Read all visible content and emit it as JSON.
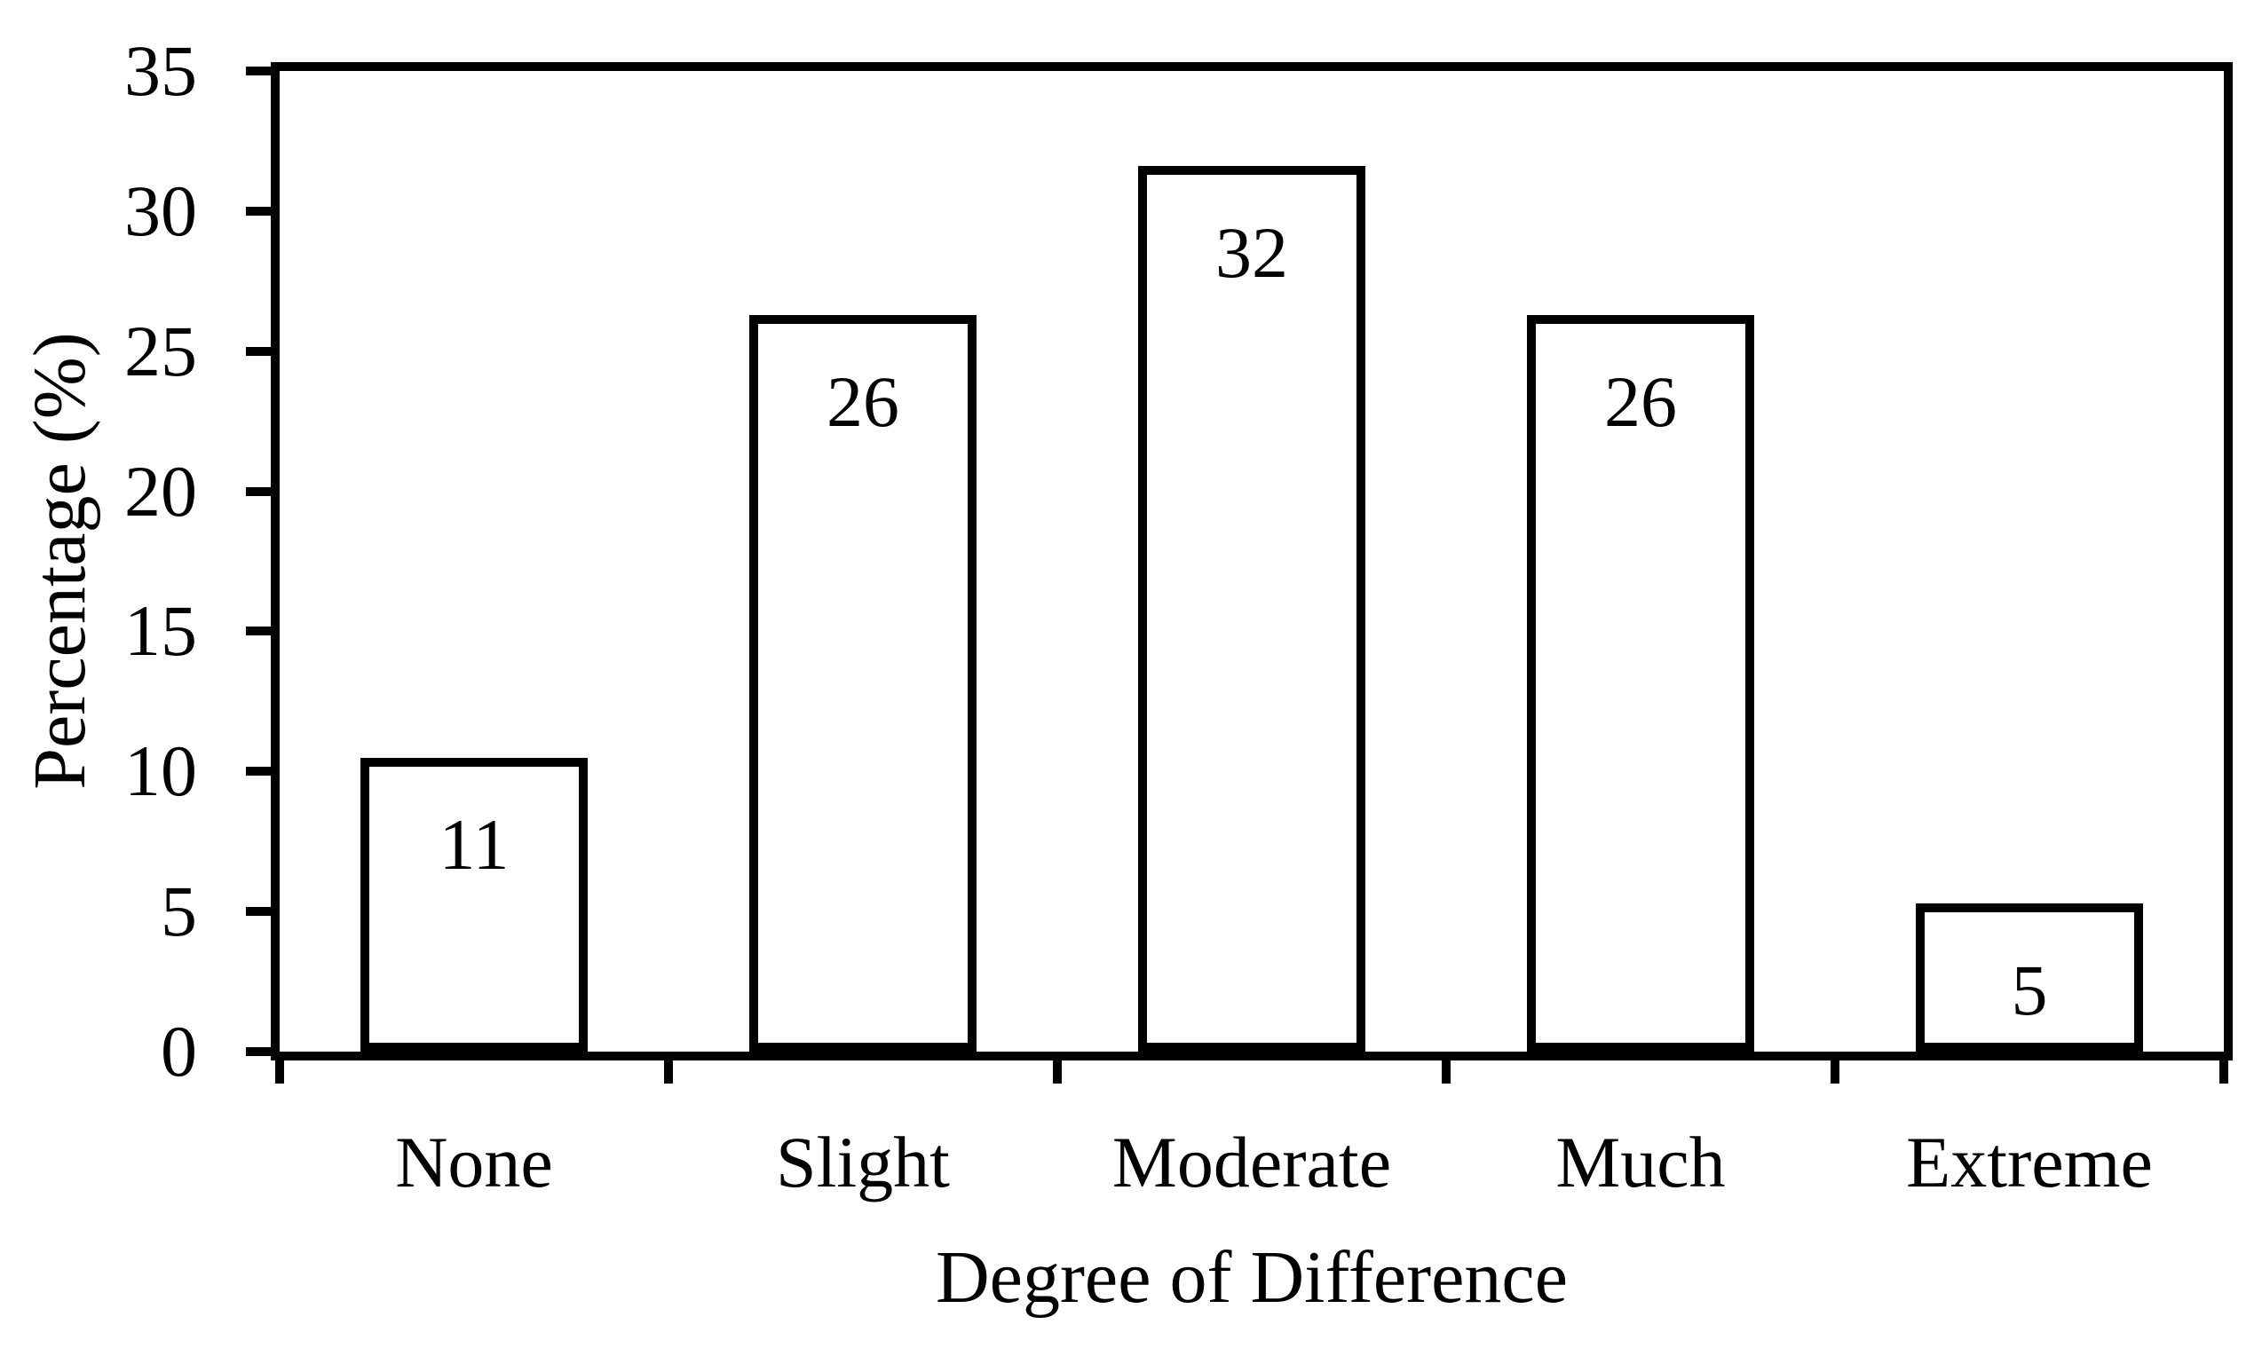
{
  "figure": {
    "background": "#ffffff",
    "ink": "#000000"
  },
  "chart_data": {
    "type": "bar",
    "title": "",
    "xlabel": "Degree of Difference",
    "ylabel": "Percentage (%)",
    "categories": [
      "None",
      "Slight",
      "Moderate",
      "Much",
      "Extreme"
    ],
    "values": [
      11,
      26,
      32,
      26,
      5
    ],
    "bar_heights_percent": [
      10.5,
      26.3,
      31.6,
      26.3,
      5.3
    ],
    "value_labels": [
      "11",
      "26",
      "32",
      "26",
      "5"
    ],
    "value_label_position": "inside-end",
    "y_ticks": [
      0,
      5,
      10,
      15,
      20,
      25,
      30,
      35
    ],
    "y_tick_labels": [
      "0",
      "5",
      "10",
      "15",
      "20",
      "25",
      "30",
      "35"
    ],
    "ylim": [
      0,
      35
    ],
    "grid": false,
    "legend": "none",
    "plot_frame": "full-box",
    "bar_fill": "#ffffff",
    "bar_outline": "#000000"
  }
}
